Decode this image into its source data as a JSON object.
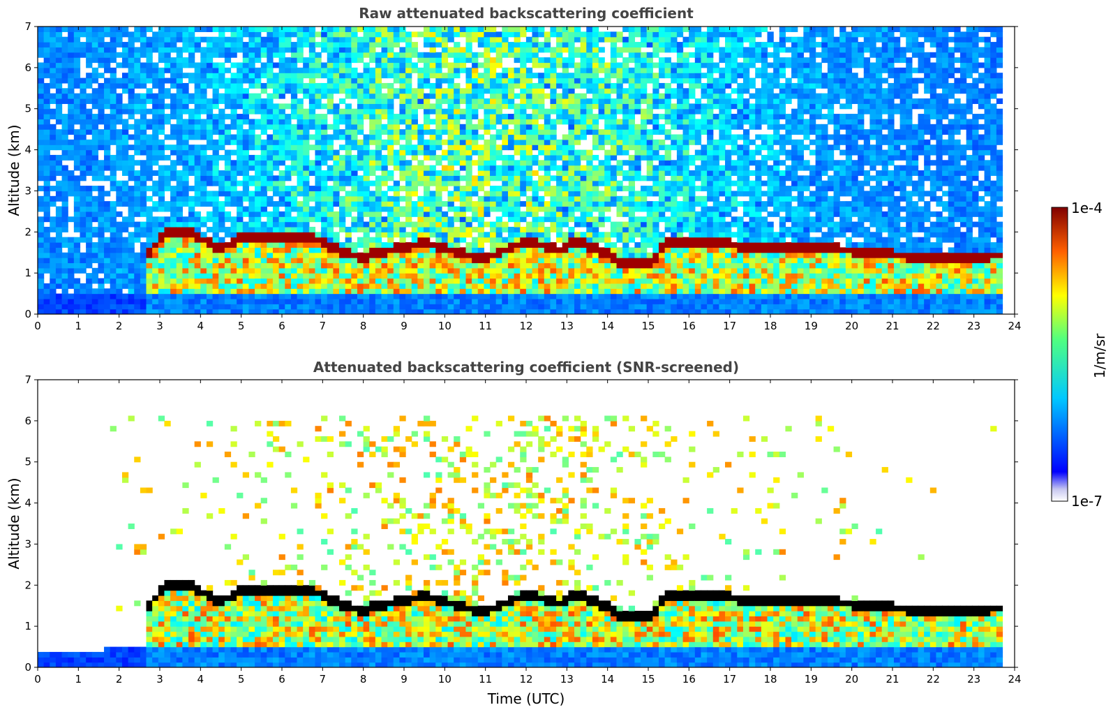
{
  "chart_data": [
    {
      "type": "heatmap",
      "title": "Raw attenuated backscattering coefficient",
      "xlabel": "",
      "ylabel": "Altitude (km)",
      "xlim": [
        0,
        24
      ],
      "ylim": [
        0,
        7
      ],
      "x_ticks": [
        "0",
        "1",
        "2",
        "3",
        "4",
        "5",
        "6",
        "7",
        "8",
        "9",
        "10",
        "11",
        "12",
        "13",
        "14",
        "15",
        "16",
        "17",
        "18",
        "19",
        "20",
        "21",
        "22",
        "23",
        "24"
      ],
      "y_ticks": [
        "0",
        "1",
        "2",
        "3",
        "4",
        "5",
        "6",
        "7"
      ],
      "data_time_range_hours": [
        0,
        23.7
      ],
      "layer_top_km_by_hour": [
        {
          "t": 2.7,
          "z": 1.5
        },
        {
          "t": 3.2,
          "z": 2.0
        },
        {
          "t": 3.7,
          "z": 2.0
        },
        {
          "t": 4.5,
          "z": 1.6
        },
        {
          "t": 5.0,
          "z": 1.85
        },
        {
          "t": 6.0,
          "z": 1.85
        },
        {
          "t": 6.8,
          "z": 1.85
        },
        {
          "t": 7.5,
          "z": 1.5
        },
        {
          "t": 8.0,
          "z": 1.4
        },
        {
          "t": 9.5,
          "z": 1.75
        },
        {
          "t": 10.5,
          "z": 1.45
        },
        {
          "t": 11.0,
          "z": 1.35
        },
        {
          "t": 12.0,
          "z": 1.8
        },
        {
          "t": 12.8,
          "z": 1.55
        },
        {
          "t": 13.3,
          "z": 1.8
        },
        {
          "t": 14.3,
          "z": 1.3
        },
        {
          "t": 15.0,
          "z": 1.2
        },
        {
          "t": 15.5,
          "z": 1.8
        },
        {
          "t": 16.5,
          "z": 1.75
        },
        {
          "t": 17.5,
          "z": 1.65
        },
        {
          "t": 18.5,
          "z": 1.6
        },
        {
          "t": 19.5,
          "z": 1.6
        },
        {
          "t": 20.5,
          "z": 1.5
        },
        {
          "t": 21.0,
          "z": 1.45
        },
        {
          "t": 22.0,
          "z": 1.4
        },
        {
          "t": 23.0,
          "z": 1.4
        },
        {
          "t": 23.7,
          "z": 1.45
        }
      ]
    },
    {
      "type": "heatmap",
      "title": "Attenuated backscattering coefficient (SNR-screened)",
      "xlabel": "Time (UTC)",
      "ylabel": "Altitude (km)",
      "xlim": [
        0,
        24
      ],
      "ylim": [
        0,
        7
      ],
      "x_ticks": [
        "0",
        "1",
        "2",
        "3",
        "4",
        "5",
        "6",
        "7",
        "8",
        "9",
        "10",
        "11",
        "12",
        "13",
        "14",
        "15",
        "16",
        "17",
        "18",
        "19",
        "20",
        "21",
        "22",
        "23",
        "24"
      ],
      "y_ticks": [
        "0",
        "1",
        "2",
        "3",
        "4",
        "5",
        "6",
        "7"
      ],
      "data_time_range_hours": [
        0,
        23.7
      ],
      "screened_noise_top_km": 6.0,
      "shallow_layer_top_km_before_1_5h": 0.35
    }
  ],
  "colorbar": {
    "label": "1/m/sr",
    "max_label": "1e-4",
    "min_label": "1e-7",
    "colormap": "jet",
    "colors": [
      "#e6e6fa",
      "#0000ff",
      "#00ffff",
      "#ffff00",
      "#ff0000",
      "#800000"
    ]
  }
}
